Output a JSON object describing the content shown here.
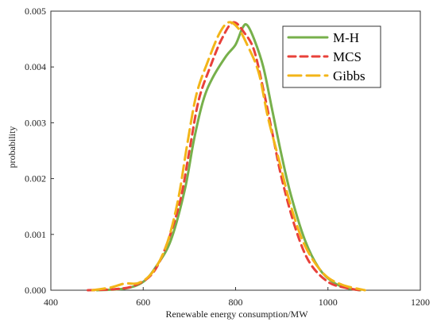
{
  "chart_data": {
    "type": "line",
    "title": "",
    "xlabel": "Renewable energy consumption/MW",
    "ylabel": "probability",
    "xlim": [
      400,
      1200
    ],
    "ylim": [
      0,
      0.005
    ],
    "x_ticks": [
      400,
      600,
      800,
      1000,
      1200
    ],
    "x_tick_labels": [
      "400",
      "600",
      "800",
      "1000",
      "1200"
    ],
    "y_ticks": [
      0,
      0.001,
      0.002,
      0.003,
      0.004,
      0.005
    ],
    "y_tick_labels": [
      "0.000",
      "0.001",
      "0.002",
      "0.003",
      "0.004",
      "0.005"
    ],
    "grid": false,
    "legend_position": "top-right",
    "series": [
      {
        "name": "M-H",
        "color": "#77b04b",
        "style": "solid",
        "points": [
          [
            500,
            0
          ],
          [
            560,
            3e-05
          ],
          [
            600,
            0.00015
          ],
          [
            630,
            0.00045
          ],
          [
            660,
            0.0009
          ],
          [
            690,
            0.0018
          ],
          [
            710,
            0.0027
          ],
          [
            730,
            0.0034
          ],
          [
            750,
            0.0038
          ],
          [
            780,
            0.0042
          ],
          [
            800,
            0.0044
          ],
          [
            815,
            0.0047
          ],
          [
            825,
            0.00475
          ],
          [
            840,
            0.0045
          ],
          [
            860,
            0.004
          ],
          [
            880,
            0.0032
          ],
          [
            900,
            0.0024
          ],
          [
            920,
            0.0017
          ],
          [
            950,
            0.0009
          ],
          [
            980,
            0.0004
          ],
          [
            1010,
            0.00015
          ],
          [
            1040,
            4e-05
          ],
          [
            1070,
            0
          ]
        ]
      },
      {
        "name": "MCS",
        "color": "#e8413a",
        "style": "dashed",
        "points": [
          [
            480,
            0
          ],
          [
            540,
            2e-05
          ],
          [
            580,
            8e-05
          ],
          [
            620,
            0.0003
          ],
          [
            650,
            0.0008
          ],
          [
            680,
            0.0016
          ],
          [
            700,
            0.0025
          ],
          [
            720,
            0.0034
          ],
          [
            745,
            0.004
          ],
          [
            770,
            0.0045
          ],
          [
            795,
            0.0048
          ],
          [
            820,
            0.0046
          ],
          [
            840,
            0.0043
          ],
          [
            860,
            0.0036
          ],
          [
            880,
            0.0028
          ],
          [
            900,
            0.002
          ],
          [
            930,
            0.0011
          ],
          [
            960,
            0.0005
          ],
          [
            1000,
            0.00015
          ],
          [
            1040,
            4e-05
          ],
          [
            1070,
            0
          ]
        ]
      },
      {
        "name": "Gibbs",
        "color": "#f3b518",
        "style": "long-dash",
        "points": [
          [
            490,
            0
          ],
          [
            530,
            5e-05
          ],
          [
            560,
            0.00012
          ],
          [
            590,
            0.00013
          ],
          [
            620,
            0.00032
          ],
          [
            650,
            0.0008
          ],
          [
            675,
            0.0016
          ],
          [
            695,
            0.0026
          ],
          [
            715,
            0.0035
          ],
          [
            740,
            0.0041
          ],
          [
            765,
            0.0046
          ],
          [
            785,
            0.0048
          ],
          [
            805,
            0.0047
          ],
          [
            825,
            0.0044
          ],
          [
            850,
            0.0039
          ],
          [
            870,
            0.0031
          ],
          [
            895,
            0.0023
          ],
          [
            920,
            0.0015
          ],
          [
            950,
            0.0008
          ],
          [
            990,
            0.0003
          ],
          [
            1030,
            0.0001
          ],
          [
            1080,
            0
          ]
        ]
      }
    ]
  }
}
